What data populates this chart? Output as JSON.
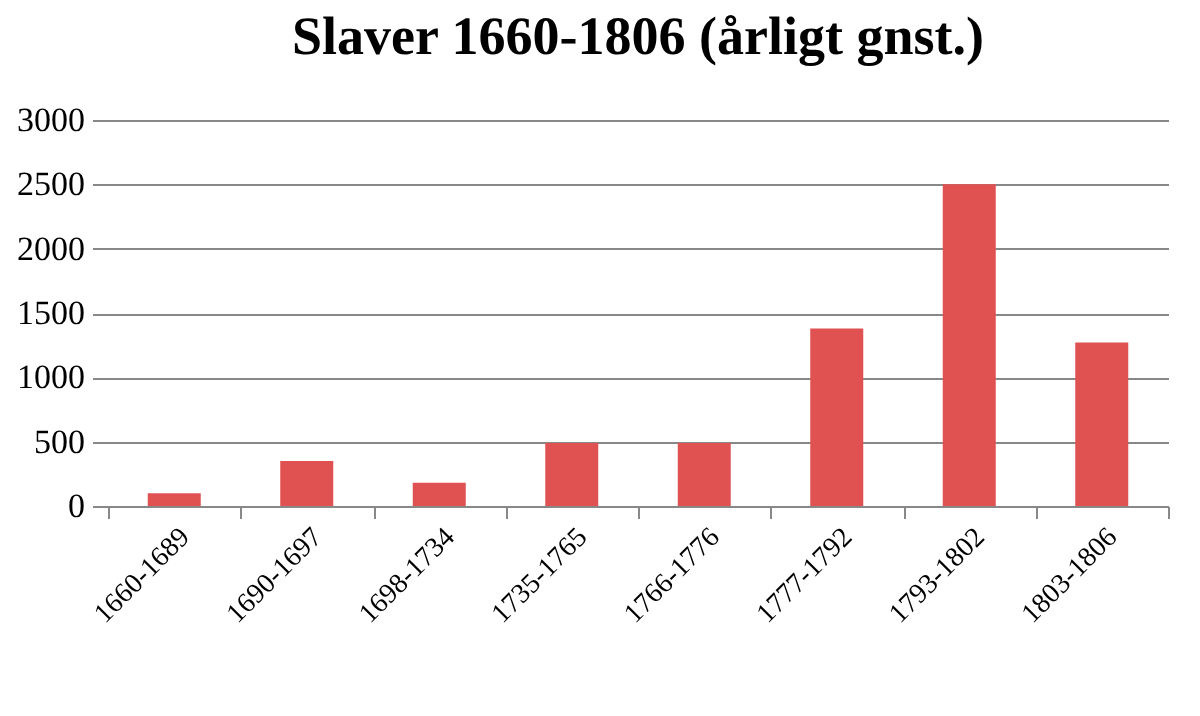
{
  "chart_data": {
    "type": "bar",
    "title": "Slaver  1660-1806 (årligt gnst.)",
    "categories": [
      "1660-1689",
      "1690-1697",
      "1698-1734",
      "1735-1765",
      "1766-1776",
      "1777-1792",
      "1793-1802",
      "1803-1806"
    ],
    "values": [
      100,
      350,
      180,
      490,
      490,
      1380,
      2500,
      1270
    ],
    "color": "#e05252",
    "ylim": [
      0,
      3000
    ],
    "yticks": [
      0,
      500,
      1000,
      1500,
      2000,
      2500,
      3000
    ],
    "grid": "y"
  }
}
